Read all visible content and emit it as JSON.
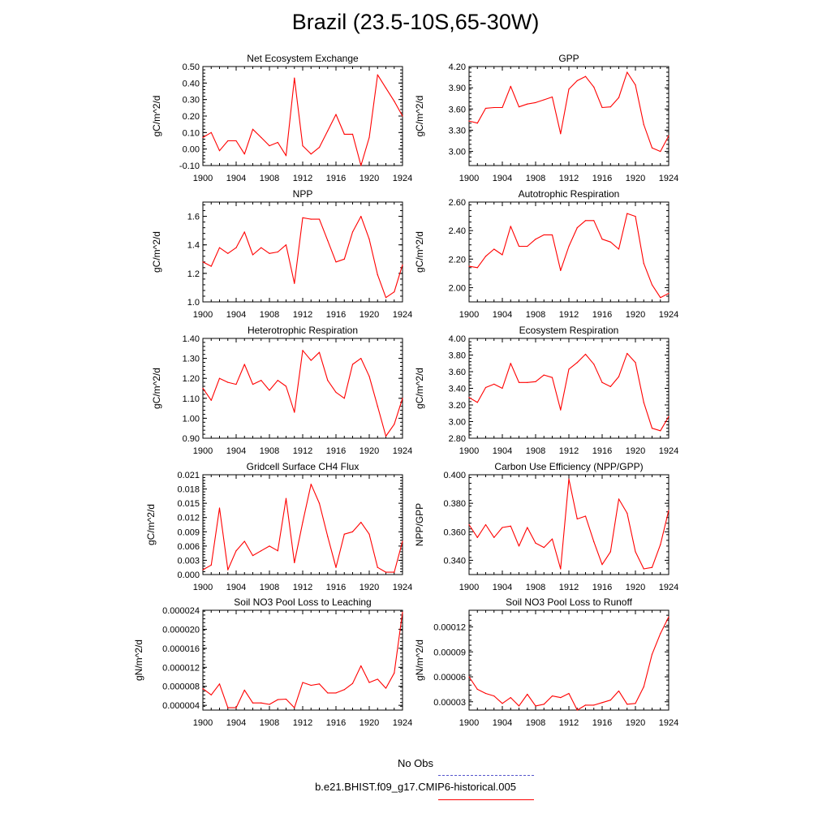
{
  "title": "Brazil (23.5-10S,65-30W)",
  "colors": {
    "series": "#ff0000",
    "obs": "#5555cc"
  },
  "legend": {
    "obs_label": "No Obs",
    "model_label": "b.e21.BHIST.f09_g17.CMIP6-historical.005"
  },
  "chart_data": [
    {
      "type": "line",
      "title": "Net Ecosystem Exchange",
      "ylabel": "gC/m^2/d",
      "xlim": [
        1900,
        1924
      ],
      "ylim": [
        -0.1,
        0.5
      ],
      "xticks": [
        "1900",
        "1904",
        "1908",
        "1912",
        "1916",
        "1920",
        "1924"
      ],
      "yticks": [
        "-0.10",
        "0.00",
        "0.10",
        "0.20",
        "0.30",
        "0.40",
        "0.50"
      ],
      "x": [
        1900,
        1901,
        1902,
        1903,
        1904,
        1905,
        1906,
        1907,
        1908,
        1909,
        1910,
        1911,
        1912,
        1913,
        1914,
        1915,
        1916,
        1917,
        1918,
        1919,
        1920,
        1921,
        1922,
        1923,
        1924
      ],
      "values": [
        0.07,
        0.1,
        -0.01,
        0.05,
        0.05,
        -0.03,
        0.12,
        0.07,
        0.02,
        0.04,
        -0.04,
        0.43,
        0.02,
        -0.03,
        0.01,
        0.11,
        0.21,
        0.09,
        0.09,
        -0.1,
        0.07,
        0.45,
        0.37,
        0.29,
        0.2
      ]
    },
    {
      "type": "line",
      "title": "GPP",
      "ylabel": "gC/m^2/d",
      "xlim": [
        1900,
        1924
      ],
      "ylim": [
        2.8,
        4.2
      ],
      "xticks": [
        "1900",
        "1904",
        "1908",
        "1912",
        "1916",
        "1920",
        "1924"
      ],
      "yticks": [
        "3.00",
        "3.30",
        "3.60",
        "3.90",
        "4.20"
      ],
      "x": [
        1900,
        1901,
        1902,
        1903,
        1904,
        1905,
        1906,
        1907,
        1908,
        1909,
        1910,
        1911,
        1912,
        1913,
        1914,
        1915,
        1916,
        1917,
        1918,
        1919,
        1920,
        1921,
        1922,
        1923,
        1924
      ],
      "values": [
        3.43,
        3.4,
        3.61,
        3.62,
        3.62,
        3.92,
        3.63,
        3.67,
        3.69,
        3.73,
        3.77,
        3.25,
        3.88,
        4.0,
        4.06,
        3.91,
        3.62,
        3.63,
        3.76,
        4.12,
        3.94,
        3.38,
        3.05,
        3.0,
        3.22
      ]
    },
    {
      "type": "line",
      "title": "NPP",
      "ylabel": "gC/m^2/d",
      "xlim": [
        1900,
        1924
      ],
      "ylim": [
        1.0,
        1.7
      ],
      "xticks": [
        "1900",
        "1904",
        "1908",
        "1912",
        "1916",
        "1920",
        "1924"
      ],
      "yticks": [
        "1.0",
        "1.2",
        "1.4",
        "1.6"
      ],
      "x": [
        1900,
        1901,
        1902,
        1903,
        1904,
        1905,
        1906,
        1907,
        1908,
        1909,
        1910,
        1911,
        1912,
        1913,
        1914,
        1915,
        1916,
        1917,
        1918,
        1919,
        1920,
        1921,
        1922,
        1923,
        1924
      ],
      "values": [
        1.28,
        1.25,
        1.38,
        1.34,
        1.38,
        1.49,
        1.33,
        1.38,
        1.34,
        1.35,
        1.4,
        1.13,
        1.59,
        1.58,
        1.58,
        1.43,
        1.28,
        1.3,
        1.49,
        1.6,
        1.44,
        1.19,
        1.03,
        1.07,
        1.26
      ]
    },
    {
      "type": "line",
      "title": "Autotrophic Respiration",
      "ylabel": "gC/m^2/d",
      "xlim": [
        1900,
        1924
      ],
      "ylim": [
        1.9,
        2.6
      ],
      "xticks": [
        "1900",
        "1904",
        "1908",
        "1912",
        "1916",
        "1920",
        "1924"
      ],
      "yticks": [
        "2.00",
        "2.20",
        "2.40",
        "2.60"
      ],
      "x": [
        1900,
        1901,
        1902,
        1903,
        1904,
        1905,
        1906,
        1907,
        1908,
        1909,
        1910,
        1911,
        1912,
        1913,
        1914,
        1915,
        1916,
        1917,
        1918,
        1919,
        1920,
        1921,
        1922,
        1923,
        1924
      ],
      "values": [
        2.15,
        2.14,
        2.22,
        2.27,
        2.23,
        2.43,
        2.29,
        2.29,
        2.34,
        2.37,
        2.37,
        2.12,
        2.29,
        2.42,
        2.47,
        2.47,
        2.34,
        2.32,
        2.27,
        2.52,
        2.5,
        2.17,
        2.02,
        1.93,
        1.96
      ]
    },
    {
      "type": "line",
      "title": "Heterotrophic Respiration",
      "ylabel": "gC/m^2/d",
      "xlim": [
        1900,
        1924
      ],
      "ylim": [
        0.9,
        1.4
      ],
      "xticks": [
        "1900",
        "1904",
        "1908",
        "1912",
        "1916",
        "1920",
        "1924"
      ],
      "yticks": [
        "0.90",
        "1.00",
        "1.10",
        "1.20",
        "1.30",
        "1.40"
      ],
      "x": [
        1900,
        1901,
        1902,
        1903,
        1904,
        1905,
        1906,
        1907,
        1908,
        1909,
        1910,
        1911,
        1912,
        1913,
        1914,
        1915,
        1916,
        1917,
        1918,
        1919,
        1920,
        1921,
        1922,
        1923,
        1924
      ],
      "values": [
        1.15,
        1.09,
        1.2,
        1.18,
        1.17,
        1.27,
        1.17,
        1.19,
        1.14,
        1.19,
        1.16,
        1.03,
        1.34,
        1.29,
        1.33,
        1.19,
        1.13,
        1.1,
        1.27,
        1.3,
        1.21,
        1.06,
        0.91,
        0.97,
        1.1
      ]
    },
    {
      "type": "line",
      "title": "Ecosystem Respiration",
      "ylabel": "gC/m^2/d",
      "xlim": [
        1900,
        1924
      ],
      "ylim": [
        2.8,
        4.0
      ],
      "xticks": [
        "1900",
        "1904",
        "1908",
        "1912",
        "1916",
        "1920",
        "1924"
      ],
      "yticks": [
        "2.80",
        "3.00",
        "3.20",
        "3.40",
        "3.60",
        "3.80",
        "4.00"
      ],
      "x": [
        1900,
        1901,
        1902,
        1903,
        1904,
        1905,
        1906,
        1907,
        1908,
        1909,
        1910,
        1911,
        1912,
        1913,
        1914,
        1915,
        1916,
        1917,
        1918,
        1919,
        1920,
        1921,
        1922,
        1923,
        1924
      ],
      "values": [
        3.29,
        3.23,
        3.41,
        3.45,
        3.4,
        3.7,
        3.47,
        3.47,
        3.48,
        3.56,
        3.53,
        3.14,
        3.63,
        3.71,
        3.81,
        3.69,
        3.47,
        3.42,
        3.54,
        3.82,
        3.71,
        3.23,
        2.92,
        2.89,
        3.06
      ]
    },
    {
      "type": "line",
      "title": "Gridcell Surface CH4 Flux",
      "ylabel": "gC/m^2/d",
      "xlim": [
        1900,
        1924
      ],
      "ylim": [
        0.0,
        0.021
      ],
      "xticks": [
        "1900",
        "1904",
        "1908",
        "1912",
        "1916",
        "1920",
        "1924"
      ],
      "yticks": [
        "0.000",
        "0.003",
        "0.006",
        "0.009",
        "0.012",
        "0.015",
        "0.018",
        "0.021"
      ],
      "x": [
        1900,
        1901,
        1902,
        1903,
        1904,
        1905,
        1906,
        1907,
        1908,
        1909,
        1910,
        1911,
        1912,
        1913,
        1914,
        1915,
        1916,
        1917,
        1918,
        1919,
        1920,
        1921,
        1922,
        1923,
        1924
      ],
      "values": [
        0.001,
        0.002,
        0.014,
        0.001,
        0.005,
        0.007,
        0.004,
        0.005,
        0.006,
        0.005,
        0.016,
        0.0025,
        0.011,
        0.019,
        0.015,
        0.008,
        0.0015,
        0.0085,
        0.009,
        0.011,
        0.0085,
        0.0015,
        0.0005,
        0.0005,
        0.007
      ]
    },
    {
      "type": "line",
      "title": "Carbon Use Efficiency (NPP/GPP)",
      "ylabel": "NPP/GPP",
      "xlim": [
        1900,
        1924
      ],
      "ylim": [
        0.33,
        0.4
      ],
      "xticks": [
        "1900",
        "1904",
        "1908",
        "1912",
        "1916",
        "1920",
        "1924"
      ],
      "yticks": [
        "0.340",
        "0.360",
        "0.380",
        "0.400"
      ],
      "x": [
        1900,
        1901,
        1902,
        1903,
        1904,
        1905,
        1906,
        1907,
        1908,
        1909,
        1910,
        1911,
        1912,
        1913,
        1914,
        1915,
        1916,
        1917,
        1918,
        1919,
        1920,
        1921,
        1922,
        1923,
        1924
      ],
      "values": [
        0.365,
        0.356,
        0.365,
        0.356,
        0.363,
        0.364,
        0.35,
        0.363,
        0.352,
        0.349,
        0.355,
        0.334,
        0.397,
        0.369,
        0.371,
        0.353,
        0.337,
        0.346,
        0.383,
        0.373,
        0.346,
        0.334,
        0.335,
        0.351,
        0.375
      ]
    },
    {
      "type": "line",
      "title": "Soil NO3 Pool Loss to Leaching",
      "ylabel": "gN/m^2/d",
      "xlim": [
        1900,
        1924
      ],
      "ylim": [
        3e-06,
        2.4e-05
      ],
      "xticks": [
        "1900",
        "1904",
        "1908",
        "1912",
        "1916",
        "1920",
        "1924"
      ],
      "yticks": [
        "0.000004",
        "0.000008",
        "0.000012",
        "0.000016",
        "0.000020",
        "0.000024"
      ],
      "x": [
        1900,
        1901,
        1902,
        1903,
        1904,
        1905,
        1906,
        1907,
        1908,
        1909,
        1910,
        1911,
        1912,
        1913,
        1914,
        1915,
        1916,
        1917,
        1918,
        1919,
        1920,
        1921,
        1922,
        1923,
        1924
      ],
      "values": [
        7.5e-06,
        6.2e-06,
        8.5e-06,
        3.5e-06,
        3.5e-06,
        7.2e-06,
        4.5e-06,
        4.5e-06,
        4.2e-06,
        5.2e-06,
        5.3e-06,
        3.5e-06,
        8.8e-06,
        8.2e-06,
        8.5e-06,
        6.6e-06,
        6.6e-06,
        7.3e-06,
        8.6e-06,
        1.23e-05,
        8.8e-06,
        9.5e-06,
        7.6e-06,
        1.08e-05,
        2.36e-05
      ]
    },
    {
      "type": "line",
      "title": "Soil NO3 Pool Loss to Runoff",
      "ylabel": "gN/m^2/d",
      "xlim": [
        1900,
        1924
      ],
      "ylim": [
        2e-05,
        0.00014
      ],
      "xticks": [
        "1900",
        "1904",
        "1908",
        "1912",
        "1916",
        "1920",
        "1924"
      ],
      "yticks": [
        "0.00003",
        "0.00006",
        "0.00009",
        "0.00012"
      ],
      "x": [
        1900,
        1901,
        1902,
        1903,
        1904,
        1905,
        1906,
        1907,
        1908,
        1909,
        1910,
        1911,
        1912,
        1913,
        1914,
        1915,
        1916,
        1917,
        1918,
        1919,
        1920,
        1921,
        1922,
        1923,
        1924
      ],
      "values": [
        6e-05,
        4.5e-05,
        4e-05,
        3.7e-05,
        2.8e-05,
        3.5e-05,
        2.5e-05,
        3.9e-05,
        2.5e-05,
        2.7e-05,
        3.7e-05,
        3.5e-05,
        4e-05,
        2e-05,
        2.6e-05,
        2.6e-05,
        2.9e-05,
        3.2e-05,
        4.3e-05,
        2.7e-05,
        2.8e-05,
        4.8e-05,
        8.7e-05,
        0.000112,
        0.000132
      ]
    }
  ]
}
